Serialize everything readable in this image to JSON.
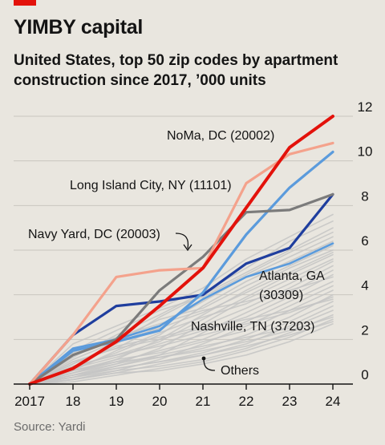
{
  "title": "YIMBY capital",
  "subtitle": "United States, top 50 zip codes by apartment construction since 2017, ’000 units",
  "source": "Source: Yardi",
  "chart_data": {
    "type": "line",
    "x": [
      2017,
      2018,
      2019,
      2020,
      2021,
      2022,
      2023,
      2024
    ],
    "x_tick_labels": [
      "2017",
      "18",
      "19",
      "20",
      "21",
      "22",
      "23",
      "24"
    ],
    "ylim": [
      0,
      12
    ],
    "y_ticks": [
      0,
      2,
      4,
      6,
      8,
      10,
      12
    ],
    "y_axis_side": "right",
    "grid": "horizontal",
    "series": [
      {
        "name": "NoMa, DC (20002)",
        "color": "#e3120b",
        "width": 4,
        "values": [
          0,
          0.7,
          1.9,
          3.5,
          5.2,
          7.9,
          10.6,
          12.0
        ]
      },
      {
        "name": "Long Island City, NY (11101)",
        "color": "#f4a28c",
        "width": 3.2,
        "values": [
          0,
          2.2,
          4.8,
          5.1,
          5.2,
          9.0,
          10.3,
          10.8
        ]
      },
      {
        "name": "Navy Yard, DC (20003)",
        "color": "#7b7b7b",
        "width": 3.2,
        "values": [
          0,
          1.3,
          2.0,
          4.2,
          5.7,
          7.7,
          7.8,
          8.5
        ]
      },
      {
        "name": "",
        "color": "#5b9bdc",
        "width": 3.2,
        "values": [
          0,
          1.5,
          1.9,
          2.4,
          4.1,
          6.7,
          8.8,
          10.4
        ]
      },
      {
        "name": "Atlanta, GA (30309)",
        "color": "#1f3e9e",
        "width": 3.2,
        "values": [
          0,
          2.2,
          3.5,
          3.7,
          4.0,
          5.4,
          6.1,
          8.5
        ]
      },
      {
        "name": "",
        "color": "#5b9bdc",
        "width": 2.6,
        "values": [
          0,
          1.6,
          2.0,
          2.6,
          3.8,
          4.8,
          5.4,
          6.3
        ]
      }
    ],
    "others": {
      "name": "Others",
      "color": "#c4c4c4",
      "series": [
        [
          0,
          1.8,
          2.6,
          3.4,
          4.3,
          5.6,
          6.6,
          7.6
        ],
        [
          0,
          1.2,
          2.2,
          3.1,
          4.1,
          5.2,
          6.4,
          7.3
        ],
        [
          0,
          0.9,
          1.8,
          3.0,
          4.0,
          5.0,
          6.0,
          7.0
        ],
        [
          0,
          1.5,
          2.4,
          3.3,
          3.9,
          4.9,
          5.9,
          6.8
        ],
        [
          0,
          1.0,
          1.6,
          2.6,
          3.7,
          4.8,
          5.7,
          6.6
        ],
        [
          0,
          0.7,
          1.4,
          2.2,
          3.5,
          4.6,
          5.5,
          6.4
        ],
        [
          0,
          1.3,
          2.0,
          2.9,
          3.4,
          4.4,
          5.3,
          6.2
        ],
        [
          0,
          0.5,
          1.1,
          2.0,
          3.1,
          4.2,
          5.2,
          6.0
        ],
        [
          0,
          1.1,
          1.9,
          2.5,
          3.2,
          4.1,
          5.0,
          5.9
        ],
        [
          0,
          0.8,
          1.3,
          1.9,
          2.9,
          3.9,
          4.9,
          5.8
        ],
        [
          0,
          0.4,
          0.9,
          1.6,
          2.7,
          3.8,
          4.7,
          5.6
        ],
        [
          0,
          0.6,
          1.5,
          2.3,
          3.0,
          3.6,
          4.5,
          5.5
        ],
        [
          0,
          0.9,
          1.7,
          2.1,
          2.6,
          3.4,
          4.3,
          5.3
        ],
        [
          0,
          0.3,
          0.8,
          1.3,
          2.3,
          3.2,
          4.1,
          5.1
        ],
        [
          0,
          0.7,
          1.2,
          1.8,
          2.4,
          3.0,
          3.9,
          4.9
        ],
        [
          0,
          1.4,
          2.1,
          2.7,
          3.3,
          3.7,
          4.2,
          4.8
        ],
        [
          0,
          0.5,
          1.0,
          1.5,
          2.0,
          2.8,
          3.7,
          4.6
        ],
        [
          0,
          0.2,
          0.6,
          1.1,
          1.8,
          2.6,
          3.5,
          4.4
        ],
        [
          0,
          0.6,
          1.1,
          1.4,
          1.9,
          2.4,
          3.3,
          4.2
        ],
        [
          0,
          0.4,
          0.8,
          1.2,
          1.6,
          2.2,
          3.0,
          4.0
        ],
        [
          0,
          0.8,
          1.3,
          1.7,
          2.2,
          2.7,
          3.2,
          3.9
        ],
        [
          0,
          0.3,
          0.7,
          1.0,
          1.4,
          2.0,
          2.8,
          3.7
        ],
        [
          0,
          1.0,
          1.6,
          2.0,
          2.5,
          2.9,
          3.3,
          3.8
        ],
        [
          0,
          0.2,
          0.5,
          0.9,
          1.3,
          1.8,
          2.6,
          3.5
        ],
        [
          0,
          0.5,
          0.9,
          1.3,
          1.7,
          2.1,
          2.5,
          3.3
        ],
        [
          0,
          0.3,
          0.6,
          0.8,
          1.1,
          1.6,
          2.3,
          3.1
        ],
        [
          0,
          0.6,
          1.0,
          1.2,
          1.5,
          1.9,
          2.4,
          3.0
        ],
        [
          0,
          0.1,
          0.4,
          0.7,
          1.0,
          1.5,
          2.1,
          2.9
        ],
        [
          0,
          0.4,
          0.7,
          1.0,
          1.3,
          1.7,
          2.2,
          2.8
        ],
        [
          0,
          0.2,
          0.5,
          0.6,
          0.9,
          1.3,
          1.9,
          2.7
        ]
      ]
    },
    "annotations": [
      {
        "text": "NoMa, DC (20002)",
        "series": 0
      },
      {
        "text": "Long Island City, NY (11101)",
        "series": 1
      },
      {
        "text": "Navy Yard, DC (20003)",
        "series": 2
      },
      {
        "text": "Atlanta, GA",
        "series": 4
      },
      {
        "text": "(30309)",
        "series": 4
      },
      {
        "text": "Nashville, TN (37203)",
        "series": 5
      },
      {
        "text": "Others",
        "series": null
      }
    ]
  }
}
